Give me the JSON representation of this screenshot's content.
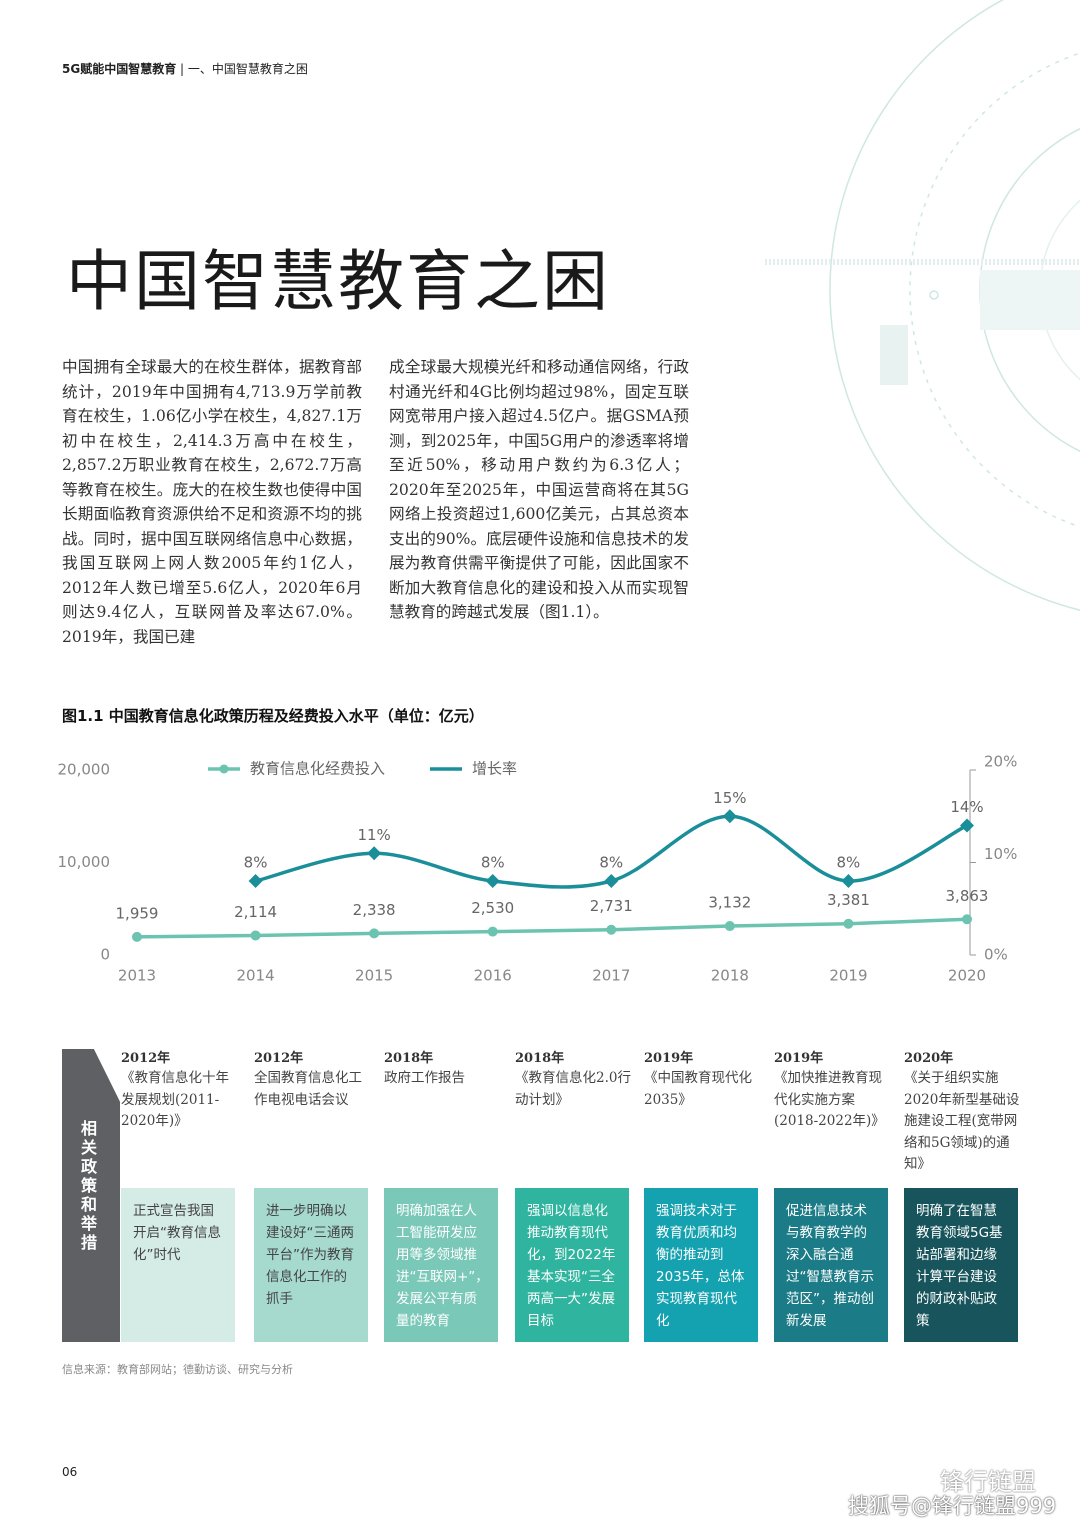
{
  "header": {
    "report": "5G赋能中国智慧教育",
    "section": "一、中国智慧教育之困"
  },
  "title": "中国智慧教育之困",
  "body": [
    "中国拥有全球最大的在校生群体，据教育部统计，2019年中国拥有4,713.9万学前教育在校生，1.06亿小学在校生，4,827.1万初中在校生，2,414.3万高中在校生，2,857.2万职业教育在校生，2,672.7万高等教育在校生。庞大的在校生数也使得中国长期面临教育资源供给不足和资源不均的挑战。同时，据中国互联网络信息中心数据，我国互联网上网人数2005年约1亿人，2012年人数已增至5.6亿人，2020年6月则达9.4亿人，互联网普及率达67.0%。2019年，我国已建",
    "成全球最大规模光纤和移动通信网络，行政村通光纤和4G比例均超过98%，固定互联网宽带用户接入超过4.5亿户。据GSMA预测，到2025年，中国5G用户的渗透率将增至近50%，移动用户数约为6.3亿人；2020年至2025年，中国运营商将在其5G网络上投资超过1,600亿美元，占其总资本支出的90%。底层硬件设施和信息技术的发展为教育供需平衡提供了可能，因此国家不断加大教育信息化的建设和投入从而实现智慧教育的跨越式发展（图1.1）。"
  ],
  "chart_data": {
    "type": "line",
    "title": "图1.1 中国教育信息化政策历程及经费投入水平（单位：亿元）",
    "categories": [
      "2013",
      "2014",
      "2015",
      "2016",
      "2017",
      "2018",
      "2019",
      "2020"
    ],
    "series": [
      {
        "name": "教育信息化经费投入",
        "color": "#6cc3b0",
        "values": [
          1959,
          2114,
          2338,
          2530,
          2731,
          3132,
          3381,
          3863
        ],
        "value_labels": [
          "1,959",
          "2,114",
          "2,338",
          "2,530",
          "2,731",
          "3,132",
          "3,381",
          "3,863"
        ]
      },
      {
        "name": "增长率",
        "color": "#1a8f9a",
        "axis": "y2",
        "smooth": true,
        "values": [
          null,
          8,
          11,
          8,
          8,
          15,
          8,
          14
        ],
        "value_labels": [
          null,
          "8%",
          "11%",
          "8%",
          "8%",
          "15%",
          "8%",
          "14%"
        ]
      }
    ],
    "ylim": [
      0,
      20000
    ],
    "yticks": [
      0,
      {
        "value": 10000,
        "label": "10,000"
      },
      {
        "value": 20000,
        "label": "20,000"
      }
    ],
    "y2lim": [
      0,
      20
    ],
    "y2ticks": [
      {
        "value": 0,
        "label": "0%"
      },
      {
        "value": 10,
        "label": "10%"
      },
      {
        "value": 20,
        "label": "20%"
      }
    ],
    "grid": false,
    "legend": "top"
  },
  "policies": {
    "label": "相关政策和举措",
    "items": [
      {
        "year": "2012年",
        "name": "《教育信息化十年发展规划(2011-2020年)》",
        "desc": "正式宣告我国开启“教育信息化”时代",
        "color": "#d5ece6",
        "text": "#444"
      },
      {
        "year": "2012年",
        "name": "全国教育信息化工作电视电话会议",
        "desc": "进一步明确以建设好“三通两平台”作为教育信息化工作的抓手",
        "color": "#a6dacf",
        "text": "#444"
      },
      {
        "year": "2018年",
        "name": "政府工作报告",
        "desc": "明确加强在人工智能研发应用等多领域推进“互联网+”，发展公平有质量的教育",
        "color": "#79c8b8",
        "text": "#ffffff"
      },
      {
        "year": "2018年",
        "name": "《教育信息化2.0行动计划》",
        "desc": "强调以信息化推动教育现代化，到2022年基本实现“三全两高一大”发展目标",
        "color": "#2fb49f",
        "text": "#ffffff"
      },
      {
        "year": "2019年",
        "name": "《中国教育现代化2035》",
        "desc": "强调技术对于教育优质和均衡的推动到2035年，总体实现教育现代化",
        "color": "#14a2b0",
        "text": "#ffffff"
      },
      {
        "year": "2019年",
        "name": "《加快推进教育现代化实施方案(2018-2022年)》",
        "desc": "促进信息技术与教育教学的深入融合通过“智慧教育示范区”，推动创新发展",
        "color": "#1b7b86",
        "text": "#ffffff"
      },
      {
        "year": "2020年",
        "name": "《关于组织实施2020年新型基础设施建设工程(宽带网络和5G领域)的通知》",
        "desc": "明确了在智慧教育领域5G基站部署和边缘计算平台建设的财政补贴政策",
        "color": "#17545b",
        "text": "#ffffff"
      }
    ]
  },
  "source": "信息来源：教育部网站；德勤访谈、研究与分析",
  "page_number": "06",
  "watermark": [
    "锋行链盟",
    "搜狐号@锋行链盟999"
  ]
}
